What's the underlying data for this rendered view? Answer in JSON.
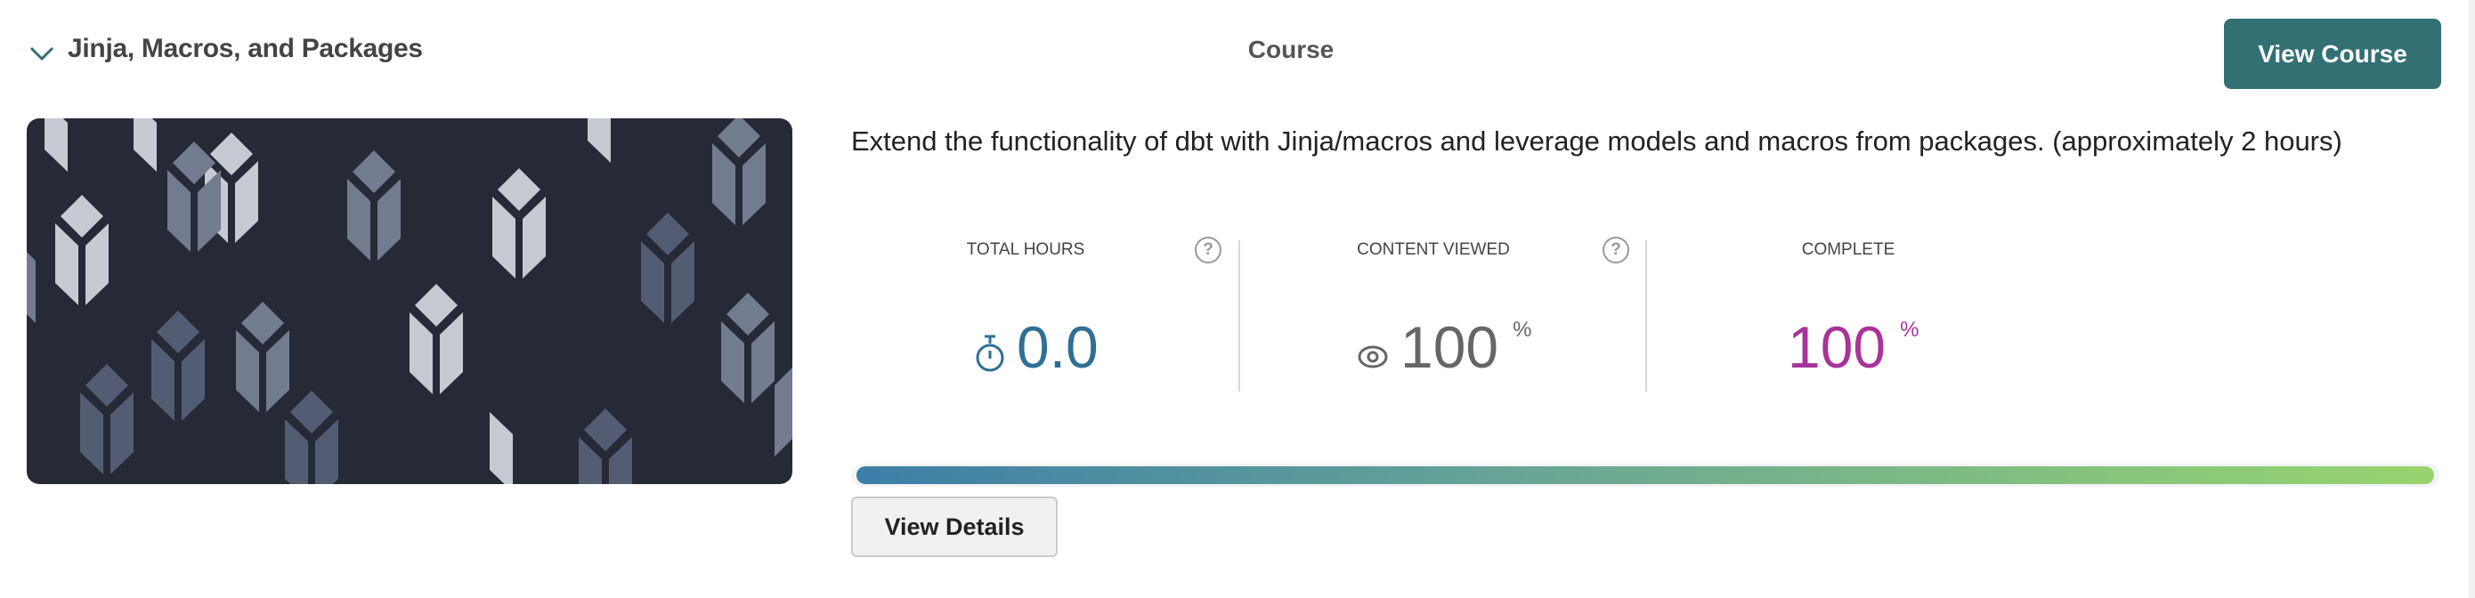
{
  "course": {
    "title": "Jinja, Macros, and Packages",
    "type_label": "Course",
    "view_course_label": "View Course",
    "description": "Extend the functionality of dbt with Jinja/macros and leverage models and macros from packages. (approximately 2 hours)",
    "stats": {
      "total_hours": {
        "label": "TOTAL HOURS",
        "value": "0.0",
        "icon": "stopwatch-icon",
        "help": "?"
      },
      "content_viewed": {
        "label": "CONTENT VIEWED",
        "value": "100",
        "unit": "%",
        "icon": "eye-icon",
        "help": "?"
      },
      "complete": {
        "label": "COMPLETE",
        "value": "100",
        "unit": "%"
      }
    },
    "progress_percent": 100,
    "view_details_label": "View Details"
  },
  "colors": {
    "accent": "#327074",
    "hours": "#2f6f95",
    "complete": "#a8339a",
    "viewed": "#666666",
    "thumbnail_bg": "#262a36"
  }
}
